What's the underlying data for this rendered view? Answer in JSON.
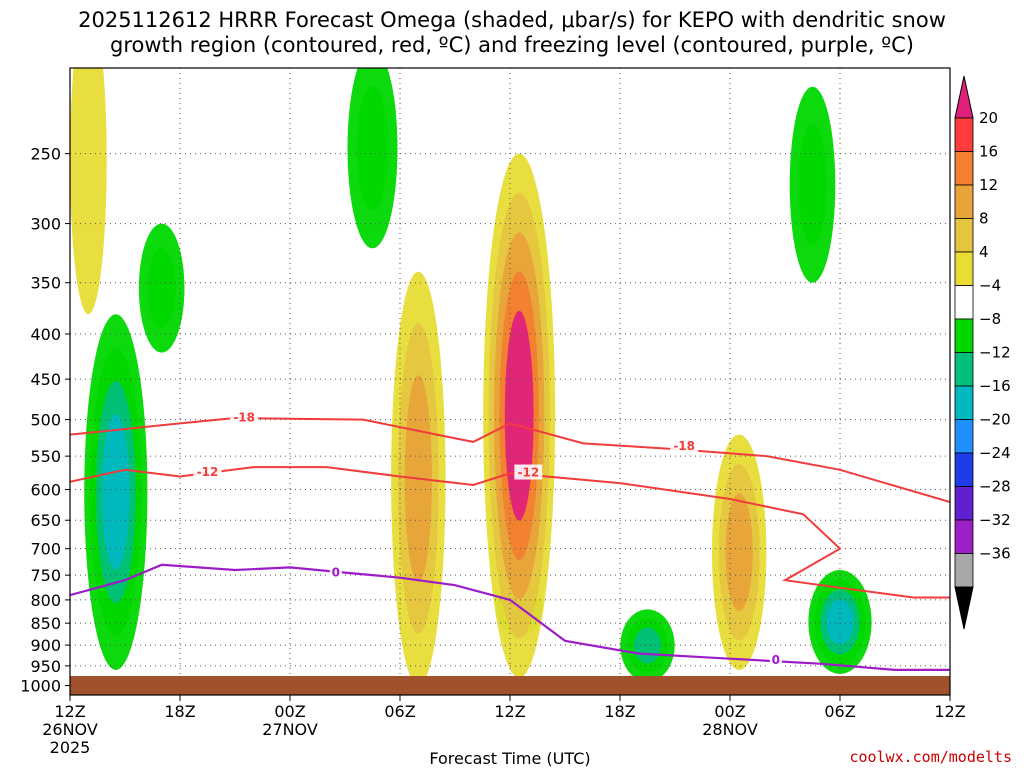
{
  "title_line1": "2025112612 HRRR Forecast Omega (shaded, μbar/s) for KEPO with dendritic snow",
  "title_line2": "growth region (contoured, red, ºC) and freezing level (contoured, purple, ºC)",
  "credit": "coolwx.com/modelts",
  "chart_data": {
    "type": "time-height cross section",
    "xlabel": "Forecast Time (UTC)",
    "ylabel": "Pressure (hPa)",
    "x_ticks": [
      {
        "hour": 0,
        "label": "12Z",
        "sub1": "26NOV",
        "sub2": "2025"
      },
      {
        "hour": 6,
        "label": "18Z",
        "sub1": "",
        "sub2": ""
      },
      {
        "hour": 12,
        "label": "00Z",
        "sub1": "27NOV",
        "sub2": ""
      },
      {
        "hour": 18,
        "label": "06Z",
        "sub1": "",
        "sub2": ""
      },
      {
        "hour": 24,
        "label": "12Z",
        "sub1": "",
        "sub2": ""
      },
      {
        "hour": 30,
        "label": "18Z",
        "sub1": "",
        "sub2": ""
      },
      {
        "hour": 36,
        "label": "00Z",
        "sub1": "28NOV",
        "sub2": ""
      },
      {
        "hour": 42,
        "label": "06Z",
        "sub1": "",
        "sub2": ""
      },
      {
        "hour": 48,
        "label": "12Z",
        "sub1": "",
        "sub2": ""
      }
    ],
    "x_range_hours": [
      0,
      48
    ],
    "y_ticks": [
      "250",
      "300",
      "350",
      "400",
      "450",
      "500",
      "550",
      "600",
      "650",
      "700",
      "750",
      "800",
      "850",
      "900",
      "950",
      "1000"
    ],
    "y_range_hpa": [
      200,
      1025
    ],
    "colorbar": {
      "labels": [
        "20",
        "16",
        "12",
        "8",
        "4",
        "−4",
        "−8",
        "−12",
        "−16",
        "−20",
        "−24",
        "−28",
        "−32",
        "−36"
      ],
      "colors": [
        "#ff3c3c",
        "#f2802e",
        "#e8a33a",
        "#e5c540",
        "#e8dc35",
        "#ffffff",
        "#00d800",
        "#00c07a",
        "#00b8c0",
        "#1e90ff",
        "#1e3ce8",
        "#6020d0",
        "#9c20c8",
        "#a8a8a8"
      ],
      "top_color": "#e0207a",
      "bottom_color": "#000000"
    },
    "omega_features": [
      {
        "hour": 2.5,
        "p_top": 380,
        "p_bot": 960,
        "value": -16,
        "note": "deep ascent column"
      },
      {
        "hour": 1.0,
        "p_top": 170,
        "p_bot": 380,
        "value": 4,
        "note": "weak sinking aloft"
      },
      {
        "hour": 5.0,
        "p_top": 300,
        "p_bot": 420,
        "value": -8,
        "note": ""
      },
      {
        "hour": 16.5,
        "p_top": 190,
        "p_bot": 320,
        "value": -10,
        "note": "upper ascent"
      },
      {
        "hour": 19.0,
        "p_top": 340,
        "p_bot": 1000,
        "value": 12,
        "note": "sinking plume"
      },
      {
        "hour": 24.5,
        "p_top": 250,
        "p_bot": 980,
        "value": 20,
        "note": "strong sinking core"
      },
      {
        "hour": 24.5,
        "p_top": 760,
        "p_bot": 880,
        "value": -8,
        "note": "embedded ascent"
      },
      {
        "hour": 31.5,
        "p_top": 820,
        "p_bot": 990,
        "value": -12,
        "note": ""
      },
      {
        "hour": 42.0,
        "p_top": 740,
        "p_bot": 970,
        "value": -16,
        "note": ""
      },
      {
        "hour": 36.5,
        "p_top": 520,
        "p_bot": 960,
        "value": 12,
        "note": ""
      },
      {
        "hour": 40.5,
        "p_top": 210,
        "p_bot": 350,
        "value": -8,
        "note": ""
      }
    ],
    "isotherm_-18": [
      {
        "hour": 0,
        "p": 520
      },
      {
        "hour": 6,
        "p": 505
      },
      {
        "hour": 9,
        "p": 498
      },
      {
        "hour": 12,
        "p": 499
      },
      {
        "hour": 16,
        "p": 500
      },
      {
        "hour": 20,
        "p": 520
      },
      {
        "hour": 22,
        "p": 530
      },
      {
        "hour": 24,
        "p": 505
      },
      {
        "hour": 28,
        "p": 532
      },
      {
        "hour": 33,
        "p": 540
      },
      {
        "hour": 38,
        "p": 550
      },
      {
        "hour": 42,
        "p": 570
      },
      {
        "hour": 48,
        "p": 620
      }
    ],
    "isotherm_-12": [
      {
        "hour": 0,
        "p": 588
      },
      {
        "hour": 3,
        "p": 570
      },
      {
        "hour": 6,
        "p": 580
      },
      {
        "hour": 10,
        "p": 566
      },
      {
        "hour": 14,
        "p": 566
      },
      {
        "hour": 18,
        "p": 580
      },
      {
        "hour": 22,
        "p": 593
      },
      {
        "hour": 24,
        "p": 575
      },
      {
        "hour": 30,
        "p": 590
      },
      {
        "hour": 36,
        "p": 615
      },
      {
        "hour": 40,
        "p": 640
      },
      {
        "hour": 42,
        "p": 700
      },
      {
        "hour": 39,
        "p": 760
      },
      {
        "hour": 42,
        "p": 775
      },
      {
        "hour": 46,
        "p": 795
      },
      {
        "hour": 48,
        "p": 795
      }
    ],
    "freezing_level_0C": [
      {
        "hour": 0,
        "p": 790
      },
      {
        "hour": 3,
        "p": 760
      },
      {
        "hour": 5,
        "p": 730
      },
      {
        "hour": 9,
        "p": 740
      },
      {
        "hour": 12,
        "p": 735
      },
      {
        "hour": 15,
        "p": 745
      },
      {
        "hour": 18,
        "p": 755
      },
      {
        "hour": 21,
        "p": 770
      },
      {
        "hour": 24,
        "p": 800
      },
      {
        "hour": 27,
        "p": 890
      },
      {
        "hour": 31,
        "p": 920
      },
      {
        "hour": 35,
        "p": 930
      },
      {
        "hour": 37,
        "p": 935
      },
      {
        "hour": 41,
        "p": 945
      },
      {
        "hour": 45,
        "p": 960
      },
      {
        "hour": 48,
        "p": 960
      }
    ],
    "contour_labels": [
      {
        "text": "-18",
        "hour": 9.5,
        "p": 497,
        "line": "isotherm_-18"
      },
      {
        "text": "-18",
        "hour": 33.5,
        "p": 536,
        "line": "isotherm_-18"
      },
      {
        "text": "-12",
        "hour": 7.5,
        "p": 573,
        "line": "isotherm_-12"
      },
      {
        "text": "-12",
        "hour": 25.0,
        "p": 574,
        "line": "isotherm_-12"
      },
      {
        "text": "0",
        "hour": 14.5,
        "p": 745,
        "line": "freezing_level_0C"
      },
      {
        "text": "0",
        "hour": 38.5,
        "p": 936,
        "line": "freezing_level_0C"
      }
    ],
    "ground_pressure_hpa": 1000
  }
}
